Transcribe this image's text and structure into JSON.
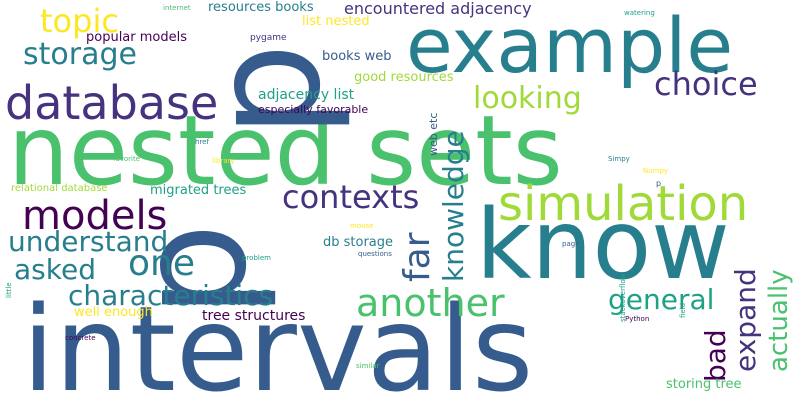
{
  "palette": {
    "dark_purple": "#440154",
    "indigo": "#46327e",
    "blue": "#365c8d",
    "teal_blue": "#277f8e",
    "teal": "#1fa187",
    "green": "#4ac16d",
    "light_green": "#a0da39",
    "yellow": "#fde725"
  },
  "words": {
    "nested_sets": "nested sets",
    "intervals": "intervals",
    "p_big": "p",
    "p_second": "p",
    "know": "know",
    "example": "example",
    "database": "database",
    "simulation": "simulation",
    "models": "models",
    "topic": "topic",
    "storage": "storage",
    "contexts": "contexts",
    "choice": "choice",
    "looking": "looking",
    "another": "another",
    "characteristics": "characteristics",
    "understand": "understand",
    "one": "one",
    "asked": "asked",
    "general": "general",
    "far": "far",
    "knowledge": "knowledge",
    "bad": "bad",
    "expand": "expand",
    "actually": "actually",
    "encountered_adjacency": "encountered adjacency",
    "resources_books": "resources books",
    "list_nested": "list nested",
    "popular_models": "popular models",
    "books_web": "books web",
    "good_resources": "good resources",
    "adjacency_list": "adjacency list",
    "especially_favorable": "especially favorable",
    "web_etc": "web etc",
    "migrated_trees": "migrated trees",
    "relational_database": "relational database",
    "db_storage": "db storage",
    "tree_structures": "tree structures",
    "well_enough": "well enough",
    "storing_tree": "storing tree",
    "pygame": "pygame",
    "internet": "internet",
    "watering": "watering",
    "favorite": "favorite",
    "href": "href",
    "library": "library",
    "simpy": "Simpy",
    "numpy": "Numpy",
    "p_small": "p",
    "mouse": "mouse",
    "questions": "questions",
    "page": "page",
    "problem": "problem",
    "little": "little",
    "stackoverflow": "stackoverflow",
    "field": "field",
    "concrete": "concrete",
    "python": "Python",
    "similar": "similar"
  }
}
